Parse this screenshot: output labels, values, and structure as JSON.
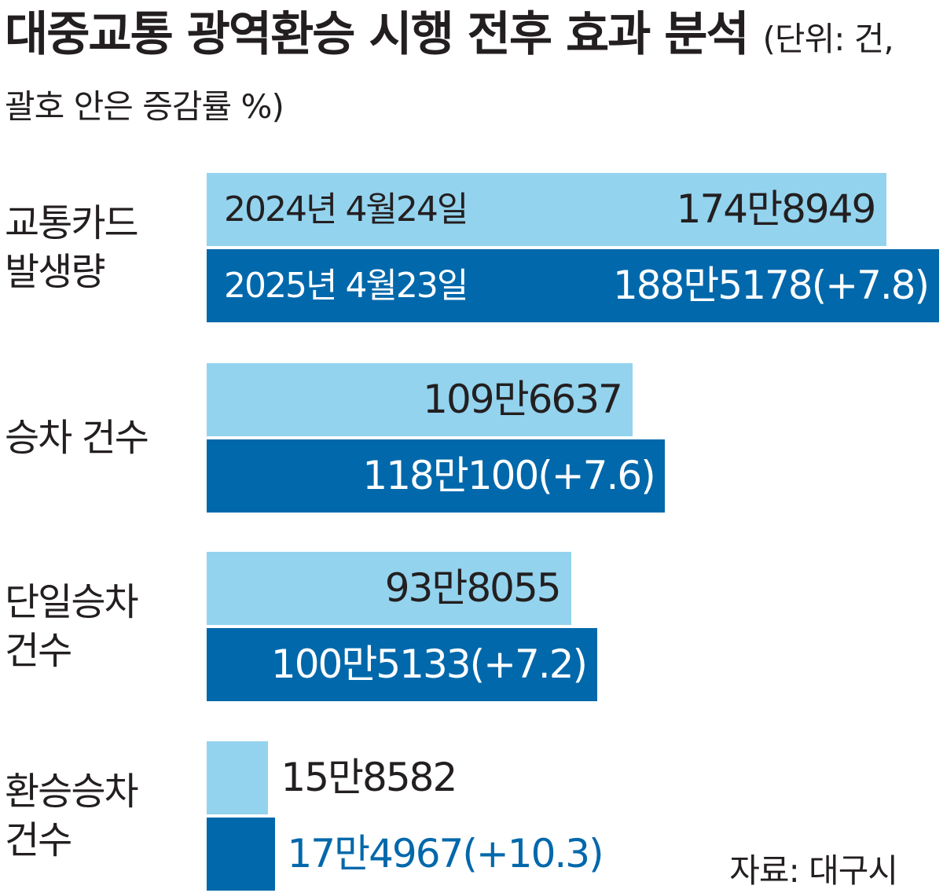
{
  "chart_data": {
    "type": "bar",
    "orientation": "horizontal",
    "title": "대중교통 광역환승 시행 전후 효과 분석",
    "subtitle": "(단위: 건, 괄호 안은 증감률 %)",
    "categories": [
      "교통카드\n발생량",
      "승차 건수",
      "단일승차\n건수",
      "환승승차\n건수"
    ],
    "series": [
      {
        "name": "2024년 4월24일",
        "color": "#93d3ee",
        "values": [
          1748949,
          1096637,
          938055,
          158582
        ],
        "value_labels": [
          "174만8949",
          "109만6637",
          "93만8055",
          "15만8582"
        ]
      },
      {
        "name": "2025년 4월23일",
        "color": "#0168ab",
        "values": [
          1885178,
          1180100,
          1005133,
          174967
        ],
        "value_labels": [
          "188만5178",
          "118만100",
          "100만5133",
          "17만4967"
        ],
        "changes": [
          7.8,
          7.6,
          7.2,
          10.3
        ],
        "change_labels": [
          "(+7.8)",
          "(+7.6)",
          "(+7.2)",
          "(+10.3)"
        ]
      }
    ],
    "source": "자료: 대구시"
  }
}
